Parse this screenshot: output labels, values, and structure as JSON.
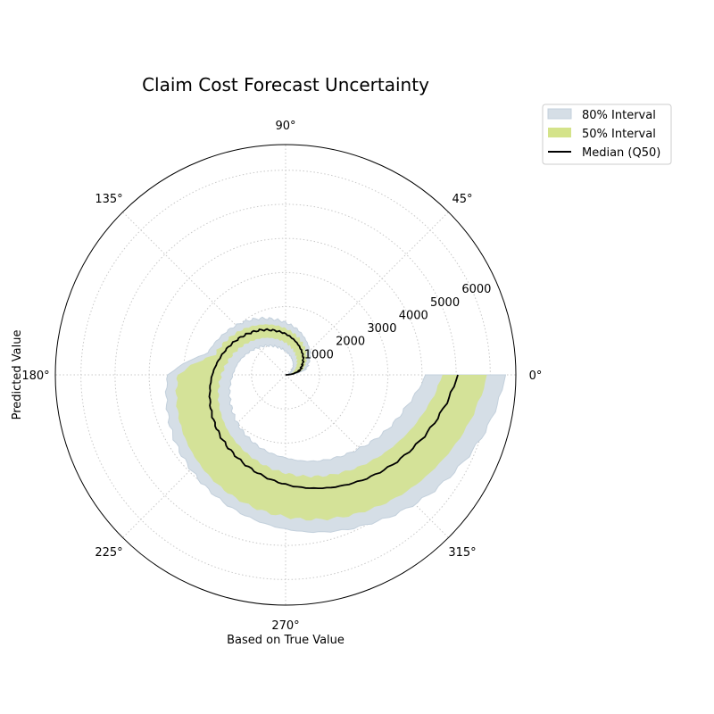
{
  "chart_data": {
    "type": "area",
    "projection": "polar",
    "title": "Claim Cost Forecast Uncertainty",
    "xlabel": "Based on True Value",
    "ylabel": "Predicted Value",
    "angle_ticks": [
      "0°",
      "45°",
      "90°",
      "135°",
      "180°",
      "225°",
      "270°",
      "315°"
    ],
    "radial_ticks": [
      "1000",
      "2000",
      "3000",
      "4000",
      "5000",
      "6000"
    ],
    "radial_tick_values": [
      1000,
      2000,
      3000,
      4000,
      5000,
      6000
    ],
    "rlim": [
      0,
      6750
    ],
    "angle_range_deg": [
      0,
      360
    ],
    "grid": true,
    "legend_position": "upper right, outside plot",
    "series": [
      {
        "name": "80% Interval",
        "kind": "band",
        "color": "#d5dee6",
        "edge_color": "#c3d0dc",
        "theta_deg": [
          0,
          15,
          30,
          45,
          60,
          75,
          90,
          105,
          120,
          135,
          150,
          165,
          180,
          195,
          210,
          225,
          240,
          255,
          270,
          285,
          300,
          315,
          330,
          345,
          360
        ],
        "lower": [
          0,
          80,
          180,
          300,
          430,
          560,
          700,
          840,
          990,
          1130,
          1280,
          1430,
          1550,
          1700,
          1840,
          2000,
          2150,
          2300,
          2430,
          2620,
          2820,
          3050,
          3350,
          3650,
          4100
        ],
        "upper": [
          0,
          600,
          800,
          1000,
          1180,
          1370,
          1530,
          1700,
          1880,
          2050,
          2210,
          2380,
          3450,
          3600,
          3770,
          3920,
          4100,
          4300,
          4520,
          4760,
          5020,
          5350,
          5700,
          6100,
          6450
        ]
      },
      {
        "name": "50% Interval",
        "kind": "band",
        "color": "#d4e38a",
        "theta_deg": [
          0,
          15,
          30,
          45,
          60,
          75,
          90,
          105,
          120,
          135,
          150,
          165,
          180,
          195,
          210,
          225,
          240,
          255,
          270,
          285,
          300,
          315,
          330,
          345,
          360
        ],
        "lower": [
          0,
          180,
          320,
          470,
          620,
          780,
          940,
          1090,
          1250,
          1400,
          1560,
          1720,
          1880,
          2040,
          2200,
          2360,
          2520,
          2700,
          2880,
          3080,
          3300,
          3560,
          3860,
          4200,
          4600
        ],
        "upper": [
          0,
          500,
          680,
          860,
          1030,
          1200,
          1360,
          1520,
          1680,
          1850,
          2010,
          2170,
          3150,
          3300,
          3460,
          3620,
          3800,
          3980,
          4160,
          4380,
          4620,
          4900,
          5200,
          5550,
          5900
        ]
      },
      {
        "name": "Median (Q50)",
        "kind": "line",
        "color": "#000000",
        "theta_deg": [
          0,
          15,
          30,
          45,
          60,
          75,
          90,
          105,
          120,
          135,
          150,
          165,
          180,
          195,
          210,
          225,
          240,
          255,
          270,
          285,
          300,
          315,
          330,
          345,
          360
        ],
        "values": [
          0,
          400,
          560,
          730,
          880,
          1040,
          1200,
          1350,
          1510,
          1660,
          1820,
          1980,
          2150,
          2300,
          2470,
          2640,
          2810,
          3000,
          3210,
          3440,
          3700,
          3990,
          4300,
          4650,
          5050
        ]
      }
    ]
  }
}
